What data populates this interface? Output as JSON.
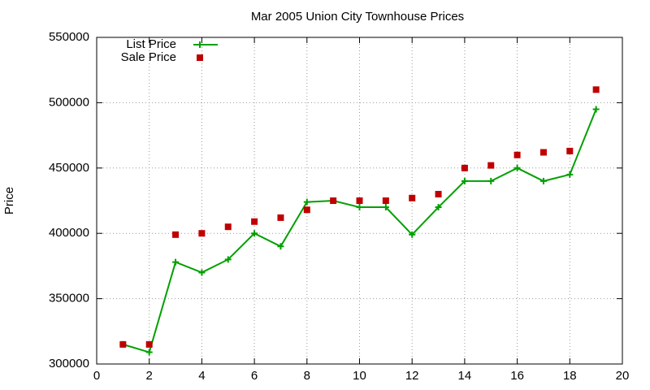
{
  "chart_data": {
    "type": "line",
    "title": "Mar 2005 Union City Townhouse Prices",
    "y_label": "Price",
    "x": [
      1,
      2,
      3,
      4,
      5,
      6,
      7,
      8,
      9,
      10,
      11,
      12,
      13,
      14,
      15,
      16,
      17,
      18,
      19
    ],
    "series": [
      {
        "name": "List Price",
        "color": "#00a000",
        "line": true,
        "marker": "plus",
        "values": [
          315000,
          309000,
          378000,
          370000,
          380000,
          400000,
          390000,
          424000,
          425000,
          420000,
          420000,
          399000,
          420000,
          440000,
          440000,
          450000,
          440000,
          445000,
          495000
        ]
      },
      {
        "name": "Sale Price",
        "color": "#c00000",
        "line": false,
        "marker": "square",
        "values": [
          315000,
          315000,
          399000,
          400000,
          405000,
          409000,
          412000,
          418000,
          425000,
          425000,
          425000,
          427000,
          430000,
          450000,
          452000,
          460000,
          462000,
          463000,
          510000
        ]
      }
    ],
    "xlim": [
      0,
      20
    ],
    "xticks": [
      0,
      2,
      4,
      6,
      8,
      10,
      12,
      14,
      16,
      18,
      20
    ],
    "ylim": [
      300000,
      550000
    ],
    "yticks": [
      300000,
      350000,
      400000,
      450000,
      500000,
      550000
    ],
    "grid": true,
    "legend": "top-left"
  }
}
